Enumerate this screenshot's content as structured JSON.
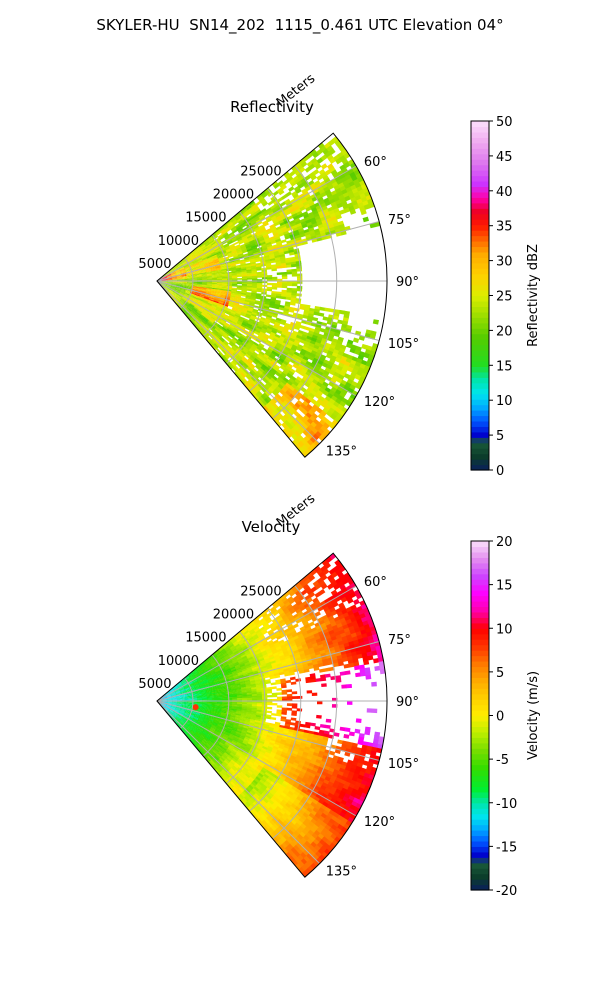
{
  "figure_title": "SKYLER-HU  SN14_202  1115_0.461 UTC Elevation 04°",
  "chart_data": [
    {
      "type": "heatmap",
      "projection": "polar-sector",
      "title": "Reflectivity",
      "range_label": "Meters",
      "range_ticks": [
        "5000",
        "10000",
        "15000",
        "20000",
        "25000"
      ],
      "range_tick_values": [
        5000,
        10000,
        15000,
        20000,
        25000
      ],
      "range_max": 32000,
      "azimuth_range": [
        50,
        140
      ],
      "azimuth_ticks": [
        "60°",
        "75°",
        "90°",
        "105°",
        "120°",
        "135°"
      ],
      "azimuth_tick_values": [
        60,
        75,
        90,
        105,
        120,
        135
      ],
      "colorbar": {
        "label": "Reflectivity dBZ",
        "min": 0,
        "max": 50,
        "ticks": [
          "0",
          "5",
          "10",
          "15",
          "20",
          "25",
          "30",
          "35",
          "40",
          "45",
          "50"
        ],
        "tick_values": [
          0,
          5,
          10,
          15,
          20,
          25,
          30,
          35,
          40,
          45,
          50
        ]
      },
      "dominant_value_range": [
        15,
        28
      ],
      "peak_value_approx": 42,
      "grid": true
    },
    {
      "type": "heatmap",
      "projection": "polar-sector",
      "title": "Velocity",
      "range_label": "Meters",
      "range_ticks": [
        "5000",
        "10000",
        "15000",
        "20000",
        "25000"
      ],
      "range_tick_values": [
        5000,
        10000,
        15000,
        20000,
        25000
      ],
      "range_max": 32000,
      "azimuth_range": [
        50,
        140
      ],
      "azimuth_ticks": [
        "60°",
        "75°",
        "90°",
        "105°",
        "120°",
        "135°"
      ],
      "azimuth_tick_values": [
        60,
        75,
        90,
        105,
        120,
        135
      ],
      "colorbar": {
        "label": "Velocity (m/s)",
        "min": -20,
        "max": 20,
        "ticks": [
          "-20",
          "-15",
          "-10",
          "-5",
          "0",
          "5",
          "10",
          "15",
          "20"
        ],
        "tick_values": [
          -20,
          -15,
          -10,
          -5,
          0,
          5,
          10,
          15,
          20
        ]
      },
      "near_range_value_approx": -11,
      "far_range_value_approx": 11,
      "grid": true
    }
  ]
}
